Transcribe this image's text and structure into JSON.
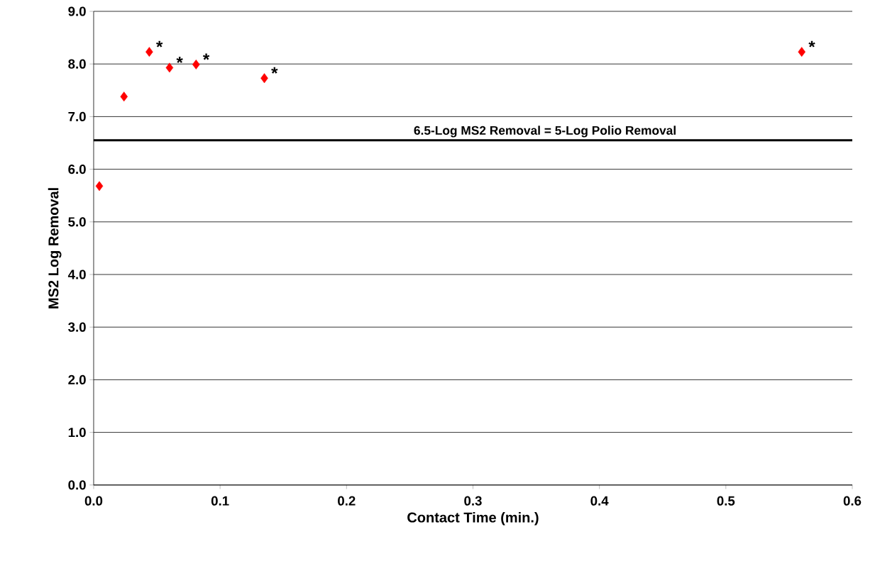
{
  "chart_data": {
    "type": "scatter",
    "xlabel": "Contact Time (min.)",
    "ylabel": "MS2 Log Removal",
    "x": [
      0.0045,
      0.024,
      0.044,
      0.06,
      0.081,
      0.135,
      0.56
    ],
    "values": [
      5.68,
      7.38,
      8.23,
      7.93,
      7.99,
      7.73,
      8.23
    ],
    "color": "#ff0000",
    "marker": "diamond",
    "xlim": [
      0,
      0.6
    ],
    "xticks": [
      {
        "value": 0,
        "label": "0.0"
      },
      0.1,
      0.2,
      0.3,
      0.4,
      0.5,
      0.6
    ],
    "ylim": [
      0,
      9
    ],
    "yticks": [
      {
        "value": 0,
        "label": "0.0"
      },
      {
        "value": 1,
        "label": "1.0"
      },
      {
        "value": 2,
        "label": "2.0"
      },
      {
        "value": 3,
        "label": "3.0"
      },
      {
        "value": 4,
        "label": "4.0"
      },
      {
        "value": 5,
        "label": "5.0"
      },
      {
        "value": 6,
        "label": "6.0"
      },
      {
        "value": 7,
        "label": "7.0"
      },
      {
        "value": 8,
        "label": "8.0"
      },
      {
        "value": 9,
        "label": "9.0"
      }
    ],
    "grid": "y",
    "ref_lines": [
      {
        "axis": "y",
        "value": 6.55,
        "label": "6.5-Log MS2 Removal  = 5-Log Polio Removal",
        "color": "#000000"
      }
    ],
    "annotations": [
      {
        "text": "*",
        "x": 0.044,
        "y": 8.23
      },
      {
        "text": "*",
        "x": 0.06,
        "y": 7.93
      },
      {
        "text": "*",
        "x": 0.081,
        "y": 7.99
      },
      {
        "text": "*",
        "x": 0.135,
        "y": 7.73
      },
      {
        "text": "*",
        "x": 0.56,
        "y": 8.23
      }
    ]
  }
}
